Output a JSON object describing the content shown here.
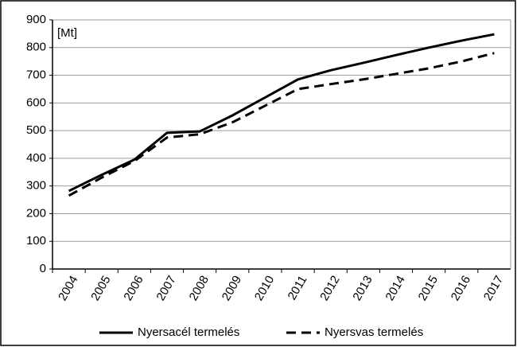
{
  "chart_data": {
    "type": "line",
    "annotation": "[Mt]",
    "categories": [
      "2004",
      "2005",
      "2006",
      "2007",
      "2008",
      "2009",
      "2010",
      "2011",
      "2012",
      "2013",
      "2014",
      "2015",
      "2016",
      "2017"
    ],
    "series": [
      {
        "name": "Nyersacél termelés",
        "color": "#000000",
        "linestyle": "solid",
        "values": [
          282,
          340,
          395,
          492,
          497,
          555,
          620,
          685,
          718,
          745,
          773,
          800,
          825,
          848
        ]
      },
      {
        "name": "Nyersvas termelés",
        "color": "#000000",
        "linestyle": "dashed",
        "values": [
          265,
          330,
          390,
          475,
          487,
          530,
          590,
          650,
          668,
          685,
          705,
          725,
          750,
          780
        ]
      }
    ],
    "ylim": [
      0,
      900
    ],
    "yticks": [
      0,
      100,
      200,
      300,
      400,
      500,
      600,
      700,
      800,
      900
    ],
    "grid": true,
    "legend": "bottom"
  }
}
